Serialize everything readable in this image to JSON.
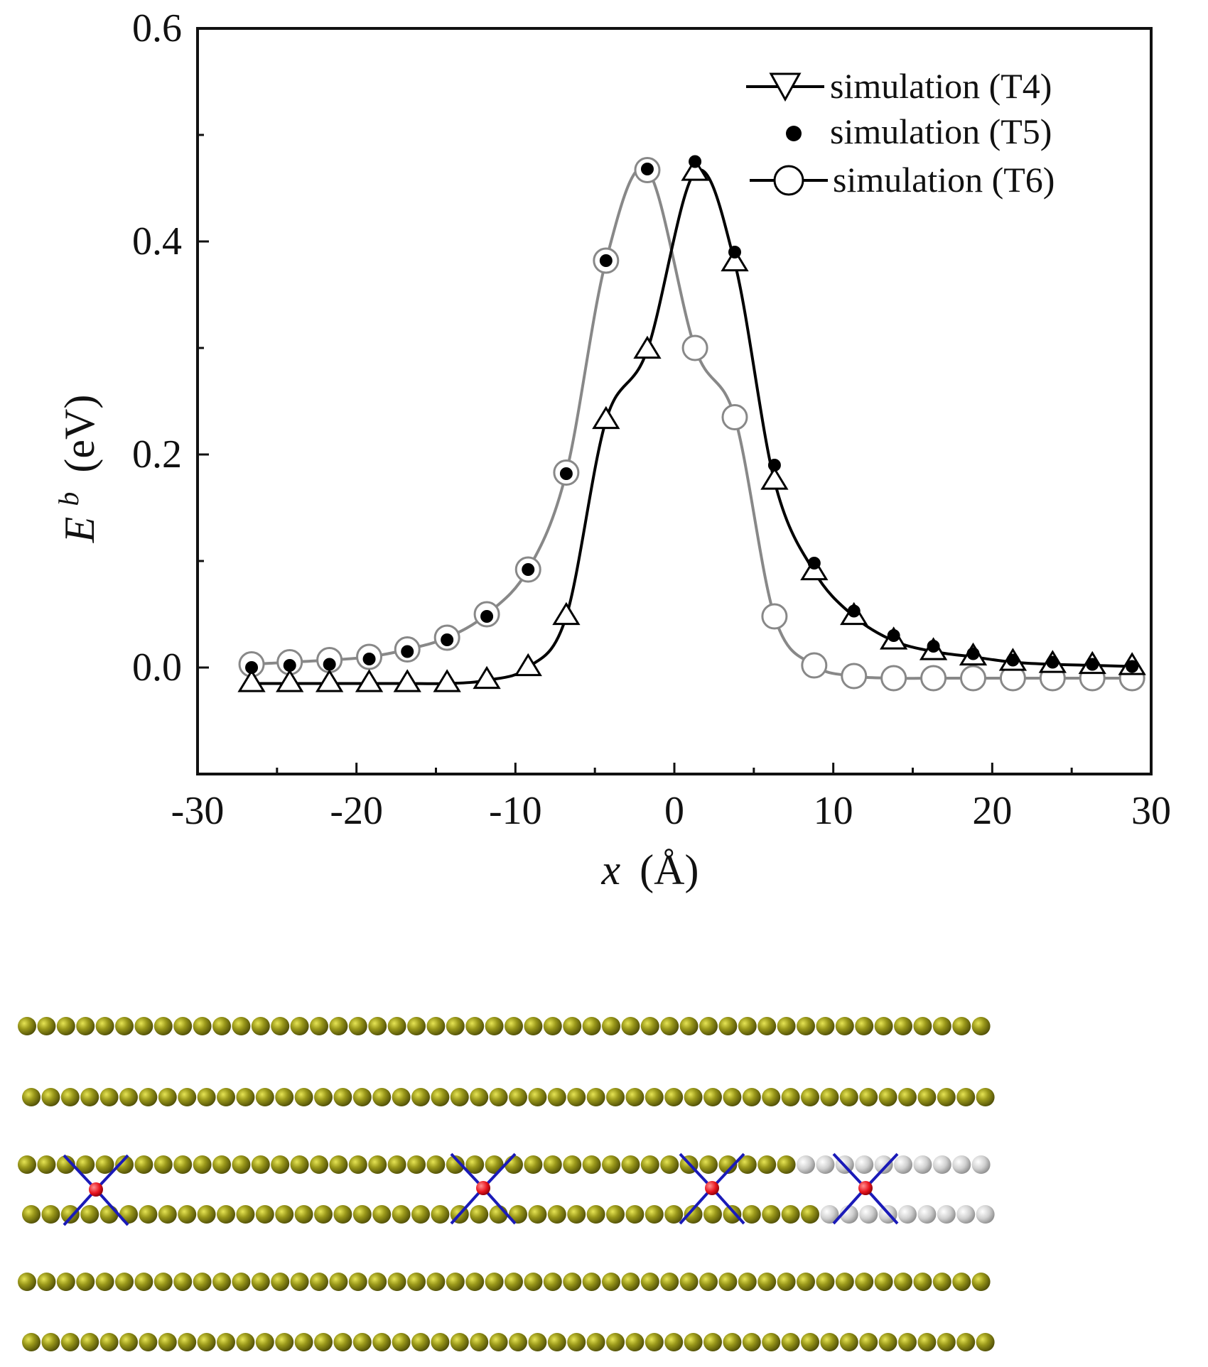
{
  "chart_data": {
    "type": "line",
    "title": "",
    "xlabel_var": "x",
    "xlabel_unit": "(Å)",
    "ylabel_var": "E",
    "ylabel_sup": "b",
    "ylabel_unit": "(eV)",
    "xlim": [
      -30,
      30
    ],
    "ylim": [
      -0.1,
      0.6
    ],
    "xticks": [
      -30,
      -20,
      -10,
      0,
      10,
      20,
      30
    ],
    "xtick_labels": [
      "-30",
      "-20",
      "-10",
      "0",
      "10",
      "20",
      "30"
    ],
    "yticks": [
      0.0,
      0.2,
      0.4,
      0.6
    ],
    "ytick_labels": [
      "0.0",
      "0.2",
      "0.4",
      "0.6"
    ],
    "grid": false,
    "legend_position": "top-right",
    "series": [
      {
        "name": "simulation (T4)",
        "marker": "triangle",
        "color": "#000000",
        "x": [
          -26.6,
          -24.2,
          -21.7,
          -19.2,
          -16.8,
          -14.3,
          -11.8,
          -9.2,
          -6.8,
          -4.3,
          -1.7,
          1.3,
          3.8,
          6.3,
          8.8,
          11.3,
          13.8,
          16.3,
          18.8,
          21.3,
          23.8,
          26.3,
          28.8
        ],
        "y": [
          -0.015,
          -0.015,
          -0.015,
          -0.015,
          -0.015,
          -0.015,
          -0.012,
          0.0,
          0.048,
          0.232,
          0.298,
          0.465,
          0.38,
          0.175,
          0.09,
          0.048,
          0.025,
          0.015,
          0.01,
          0.005,
          0.003,
          0.002,
          0.001
        ]
      },
      {
        "name": "simulation (T5)",
        "marker": "filled-circle",
        "color": "#000000",
        "x": [
          -26.6,
          -24.2,
          -21.7,
          -19.2,
          -16.8,
          -14.3,
          -11.8,
          -9.2,
          -6.8,
          -4.3,
          -1.7,
          1.3,
          3.8,
          6.3,
          8.8,
          11.3,
          13.8,
          16.3,
          18.8,
          21.3,
          23.8,
          26.3,
          28.8
        ],
        "y": [
          0.0,
          0.002,
          0.003,
          0.008,
          0.015,
          0.026,
          0.048,
          0.092,
          0.182,
          0.382,
          0.468,
          0.475,
          0.39,
          0.19,
          0.098,
          0.053,
          0.03,
          0.02,
          0.013,
          0.007,
          0.005,
          0.003,
          0.001
        ]
      },
      {
        "name": "simulation (T6)",
        "marker": "open-circle",
        "color": "#888888",
        "x": [
          -26.6,
          -24.2,
          -21.7,
          -19.2,
          -16.8,
          -14.3,
          -11.8,
          -9.2,
          -6.8,
          -4.3,
          -1.7,
          1.3,
          3.8,
          6.3,
          8.8,
          11.3,
          13.8,
          16.3,
          18.8,
          21.3,
          23.8,
          26.3,
          28.8
        ],
        "y": [
          0.003,
          0.005,
          0.007,
          0.01,
          0.017,
          0.028,
          0.05,
          0.092,
          0.183,
          0.382,
          0.467,
          0.3,
          0.235,
          0.048,
          0.002,
          -0.008,
          -0.01,
          -0.01,
          -0.01,
          -0.01,
          -0.01,
          -0.01,
          -0.01
        ]
      }
    ]
  },
  "atoms": {
    "rows": 6,
    "atoms_per_row": 50,
    "atom_color": "#8b8a10",
    "highlight_color": "#d4d4d4",
    "marker_color": "#e8141e",
    "bond_color": "#1a1ab8"
  }
}
